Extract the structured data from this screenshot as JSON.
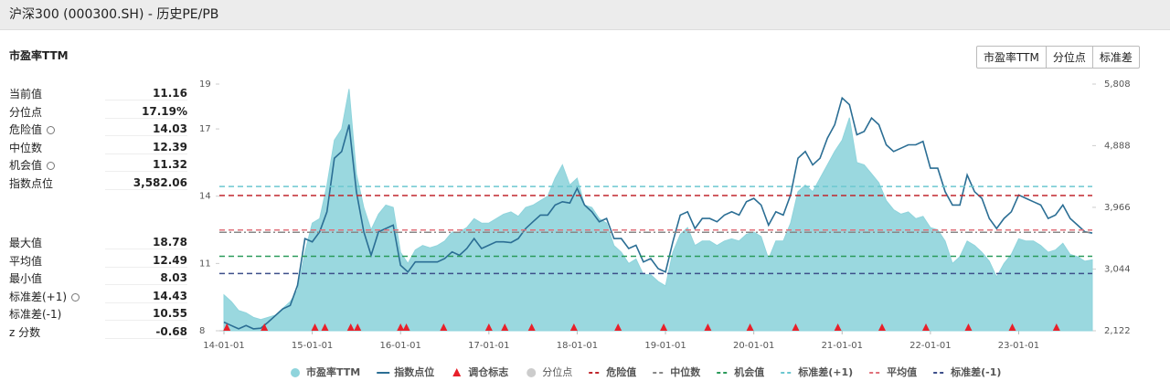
{
  "header": {
    "title": "沪深300 (000300.SH) - 历史PE/PB"
  },
  "section_title": "市盈率TTM",
  "tabs": [
    "市盈率TTM",
    "分位点",
    "标准差"
  ],
  "stats": {
    "current": [
      {
        "label": "当前值",
        "value": "11.16"
      },
      {
        "label": "分位点",
        "value": "17.19%"
      },
      {
        "label": "危险值",
        "value": "14.03",
        "setting": true
      },
      {
        "label": "中位数",
        "value": "12.39"
      },
      {
        "label": "机会值",
        "value": "11.32",
        "setting": true
      },
      {
        "label": "指数点位",
        "value": "3,582.06"
      }
    ],
    "history": [
      {
        "label": "最大值",
        "value": "18.78"
      },
      {
        "label": "平均值",
        "value": "12.49"
      },
      {
        "label": "最小值",
        "value": "8.03"
      },
      {
        "label": "标准差(+1)",
        "value": "14.43",
        "setting": true
      },
      {
        "label": "标准差(-1)",
        "value": "10.55"
      },
      {
        "label": "z 分数",
        "value": "-0.68"
      }
    ]
  },
  "chart_data": {
    "type": "line",
    "x": [
      "14-01-01",
      "14-02-01",
      "14-03-01",
      "14-04-01",
      "14-05-01",
      "14-06-01",
      "14-07-01",
      "14-08-01",
      "14-09-01",
      "14-10-01",
      "14-11-01",
      "14-12-01",
      "15-01-01",
      "15-02-01",
      "15-03-01",
      "15-04-01",
      "15-05-01",
      "15-06-01",
      "15-07-01",
      "15-08-01",
      "15-09-01",
      "15-10-01",
      "15-11-01",
      "15-12-01",
      "16-01-01",
      "16-02-01",
      "16-03-01",
      "16-04-01",
      "16-05-01",
      "16-06-01",
      "16-07-01",
      "16-08-01",
      "16-09-01",
      "16-10-01",
      "16-11-01",
      "16-12-01",
      "17-01-01",
      "17-02-01",
      "17-03-01",
      "17-04-01",
      "17-05-01",
      "17-06-01",
      "17-07-01",
      "17-08-01",
      "17-09-01",
      "17-10-01",
      "17-11-01",
      "17-12-01",
      "18-01-01",
      "18-02-01",
      "18-03-01",
      "18-04-01",
      "18-05-01",
      "18-06-01",
      "18-07-01",
      "18-08-01",
      "18-09-01",
      "18-10-01",
      "18-11-01",
      "18-12-01",
      "19-01-01",
      "19-02-01",
      "19-03-01",
      "19-04-01",
      "19-05-01",
      "19-06-01",
      "19-07-01",
      "19-08-01",
      "19-09-01",
      "19-10-01",
      "19-11-01",
      "19-12-01",
      "20-01-01",
      "20-02-01",
      "20-03-01",
      "20-04-01",
      "20-05-01",
      "20-06-01",
      "20-07-01",
      "20-08-01",
      "20-09-01",
      "20-10-01",
      "20-11-01",
      "20-12-01",
      "21-01-01",
      "21-02-01",
      "21-03-01",
      "21-04-01",
      "21-05-01",
      "21-06-01",
      "21-07-01",
      "21-08-01",
      "21-09-01",
      "21-10-01",
      "21-11-01",
      "21-12-01",
      "22-01-01",
      "22-02-01",
      "22-03-01",
      "22-04-01",
      "22-05-01",
      "22-06-01",
      "22-07-01",
      "22-08-01",
      "22-09-01",
      "22-10-01",
      "22-11-01",
      "22-12-01",
      "23-01-01",
      "23-02-01",
      "23-03-01",
      "23-04-01",
      "23-05-01",
      "23-06-01",
      "23-07-01",
      "23-08-01",
      "23-09-01",
      "23-10-01",
      "23-11-01"
    ],
    "xlim": [
      "14-01-01",
      "23-11-01"
    ],
    "xticks": [
      "14-01-01",
      "15-01-01",
      "16-01-01",
      "17-01-01",
      "18-01-01",
      "19-01-01",
      "20-01-01",
      "21-01-01",
      "22-01-01",
      "23-01-01"
    ],
    "ylim": [
      8,
      19
    ],
    "yticks": [
      8,
      11,
      14,
      17,
      19
    ],
    "y2lim": [
      2122,
      5808
    ],
    "y2ticks": [
      {
        "value": 2122,
        "label": "2,122"
      },
      {
        "value": 3044,
        "label": "3,044"
      },
      {
        "value": 3966,
        "label": "3,966"
      },
      {
        "value": 4888,
        "label": "4,888"
      },
      {
        "value": 5808,
        "label": "5,808"
      }
    ],
    "series": [
      {
        "name": "市盈率TTM",
        "style": "area",
        "color": "#8fd4dc",
        "values": [
          9.6,
          9.3,
          8.9,
          8.8,
          8.6,
          8.5,
          8.6,
          8.7,
          9.0,
          9.3,
          9.8,
          11.5,
          12.8,
          13.0,
          14.5,
          16.5,
          17.0,
          18.78,
          15.0,
          13.5,
          12.5,
          13.2,
          13.6,
          13.5,
          11.5,
          11.0,
          11.6,
          11.8,
          11.7,
          11.8,
          12.0,
          12.4,
          12.4,
          12.6,
          13.0,
          12.8,
          12.8,
          13.0,
          13.2,
          13.3,
          13.1,
          13.5,
          13.6,
          13.8,
          14.0,
          14.8,
          15.4,
          14.5,
          14.8,
          13.6,
          13.5,
          13.0,
          12.8,
          11.8,
          11.5,
          11.0,
          11.2,
          10.5,
          10.5,
          10.2,
          10.0,
          11.5,
          12.3,
          12.6,
          11.8,
          12.0,
          12.0,
          11.8,
          12.0,
          12.1,
          12.0,
          12.3,
          12.4,
          12.2,
          11.2,
          12.0,
          12.0,
          12.8,
          14.2,
          14.5,
          14.2,
          14.8,
          15.4,
          16.0,
          16.5,
          17.5,
          15.5,
          15.4,
          15.0,
          14.6,
          13.8,
          13.4,
          13.2,
          13.3,
          13.0,
          13.1,
          12.6,
          12.5,
          12.0,
          11.0,
          11.3,
          12.0,
          11.8,
          11.5,
          11.1,
          10.4,
          11.0,
          11.4,
          12.1,
          12.0,
          12.0,
          11.8,
          11.5,
          11.6,
          11.9,
          11.4,
          11.3,
          11.1,
          11.16
        ]
      },
      {
        "name": "指数点位",
        "style": "line",
        "axis": "y2",
        "color": "#2b6e94",
        "values": [
          2250,
          2200,
          2150,
          2200,
          2150,
          2160,
          2250,
          2350,
          2450,
          2500,
          2800,
          3500,
          3450,
          3600,
          3900,
          4700,
          4800,
          5200,
          4200,
          3600,
          3250,
          3600,
          3650,
          3700,
          3100,
          3000,
          3150,
          3150,
          3150,
          3150,
          3200,
          3300,
          3250,
          3350,
          3500,
          3350,
          3400,
          3450,
          3450,
          3440,
          3500,
          3650,
          3750,
          3850,
          3850,
          4000,
          4050,
          4030,
          4250,
          4000,
          3900,
          3750,
          3800,
          3500,
          3500,
          3350,
          3400,
          3150,
          3200,
          3050,
          3000,
          3450,
          3850,
          3900,
          3650,
          3800,
          3800,
          3750,
          3850,
          3900,
          3850,
          4050,
          4100,
          4000,
          3700,
          3900,
          3850,
          4150,
          4700,
          4800,
          4600,
          4700,
          5000,
          5200,
          5600,
          5500,
          5050,
          5100,
          5300,
          5200,
          4900,
          4800,
          4850,
          4900,
          4900,
          4950,
          4550,
          4550,
          4200,
          4000,
          4000,
          4450,
          4200,
          4100,
          3800,
          3650,
          3800,
          3900,
          4150,
          4100,
          4050,
          4000,
          3800,
          3850,
          4000,
          3800,
          3700,
          3600,
          3582.06
        ]
      }
    ],
    "markers": {
      "name": "调仓标志",
      "color": "#e8202a",
      "x": [
        "14-01-13",
        "14-06-16",
        "15-01-12",
        "15-02-23",
        "15-06-08",
        "15-07-06",
        "16-01-01",
        "16-01-25",
        "16-06-27",
        "17-01-01",
        "17-03-06",
        "17-06-26",
        "17-12-18",
        "18-06-18",
        "18-12-24",
        "19-06-24",
        "19-12-16",
        "20-06-22",
        "20-12-14",
        "21-06-14",
        "21-12-13",
        "22-06-06",
        "22-12-05",
        "23-06-05"
      ]
    },
    "percentile": {
      "name": "分位点",
      "color": "#cccccc"
    },
    "reference_lines": [
      {
        "name": "危险值",
        "value": 14.03,
        "color": "#c0272d",
        "dash": "6 4"
      },
      {
        "name": "中位数",
        "value": 12.39,
        "color": "#888888",
        "dash": "8 3 2 3"
      },
      {
        "name": "机会值",
        "value": 11.32,
        "color": "#2a9a5a",
        "dash": "6 4"
      },
      {
        "name": "标准差(+1)",
        "value": 14.43,
        "color": "#6cc7d0",
        "dash": "6 4"
      },
      {
        "name": "平均值",
        "value": 12.49,
        "color": "#e0707a",
        "dash": "6 4"
      },
      {
        "name": "标准差(-1)",
        "value": 10.55,
        "color": "#3d4f8a",
        "dash": "6 4"
      }
    ],
    "legend": "bottom"
  }
}
